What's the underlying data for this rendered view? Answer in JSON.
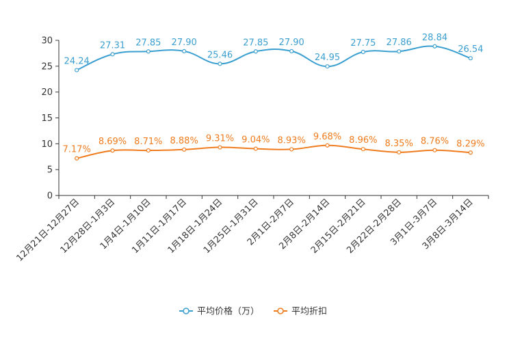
{
  "chart_data": {
    "type": "line",
    "title": "",
    "xlabel": "",
    "ylabel": "",
    "ylim": [
      0,
      30
    ],
    "yticks": [
      0,
      5,
      10,
      15,
      20,
      25,
      30
    ],
    "categories": [
      "12月21日-12月27日",
      "12月28日-1月3日",
      "1月4日-1月10日",
      "1月11日-1月17日",
      "1月18日-1月24日",
      "1月25日-1月31日",
      "2月1日-2月7日",
      "2月8日-2月14日",
      "2月15日-2月21日",
      "2月22日-2月28日",
      "3月1日-3月7日",
      "3月8日-3月14日"
    ],
    "series": [
      {
        "name": "平均价格（万）",
        "color": "#3a9fd0",
        "values": [
          24.24,
          27.31,
          27.85,
          27.9,
          25.46,
          27.85,
          27.9,
          24.95,
          27.75,
          27.86,
          28.84,
          26.54
        ],
        "labels": [
          "24.24",
          "27.31",
          "27.85",
          "27.90",
          "25.46",
          "27.85",
          "27.90",
          "24.95",
          "27.75",
          "27.86",
          "28.84",
          "26.54"
        ]
      },
      {
        "name": "平均折扣",
        "color": "#f07b1d",
        "values": [
          7.17,
          8.69,
          8.71,
          8.88,
          9.31,
          9.04,
          8.93,
          9.68,
          8.96,
          8.35,
          8.76,
          8.29
        ],
        "labels": [
          "7.17%",
          "8.69%",
          "8.71%",
          "8.88%",
          "9.31%",
          "9.04%",
          "8.93%",
          "9.68%",
          "8.96%",
          "8.35%",
          "8.76%",
          "8.29%"
        ]
      }
    ],
    "legend": {
      "position": "bottom-center"
    },
    "grid": false
  }
}
